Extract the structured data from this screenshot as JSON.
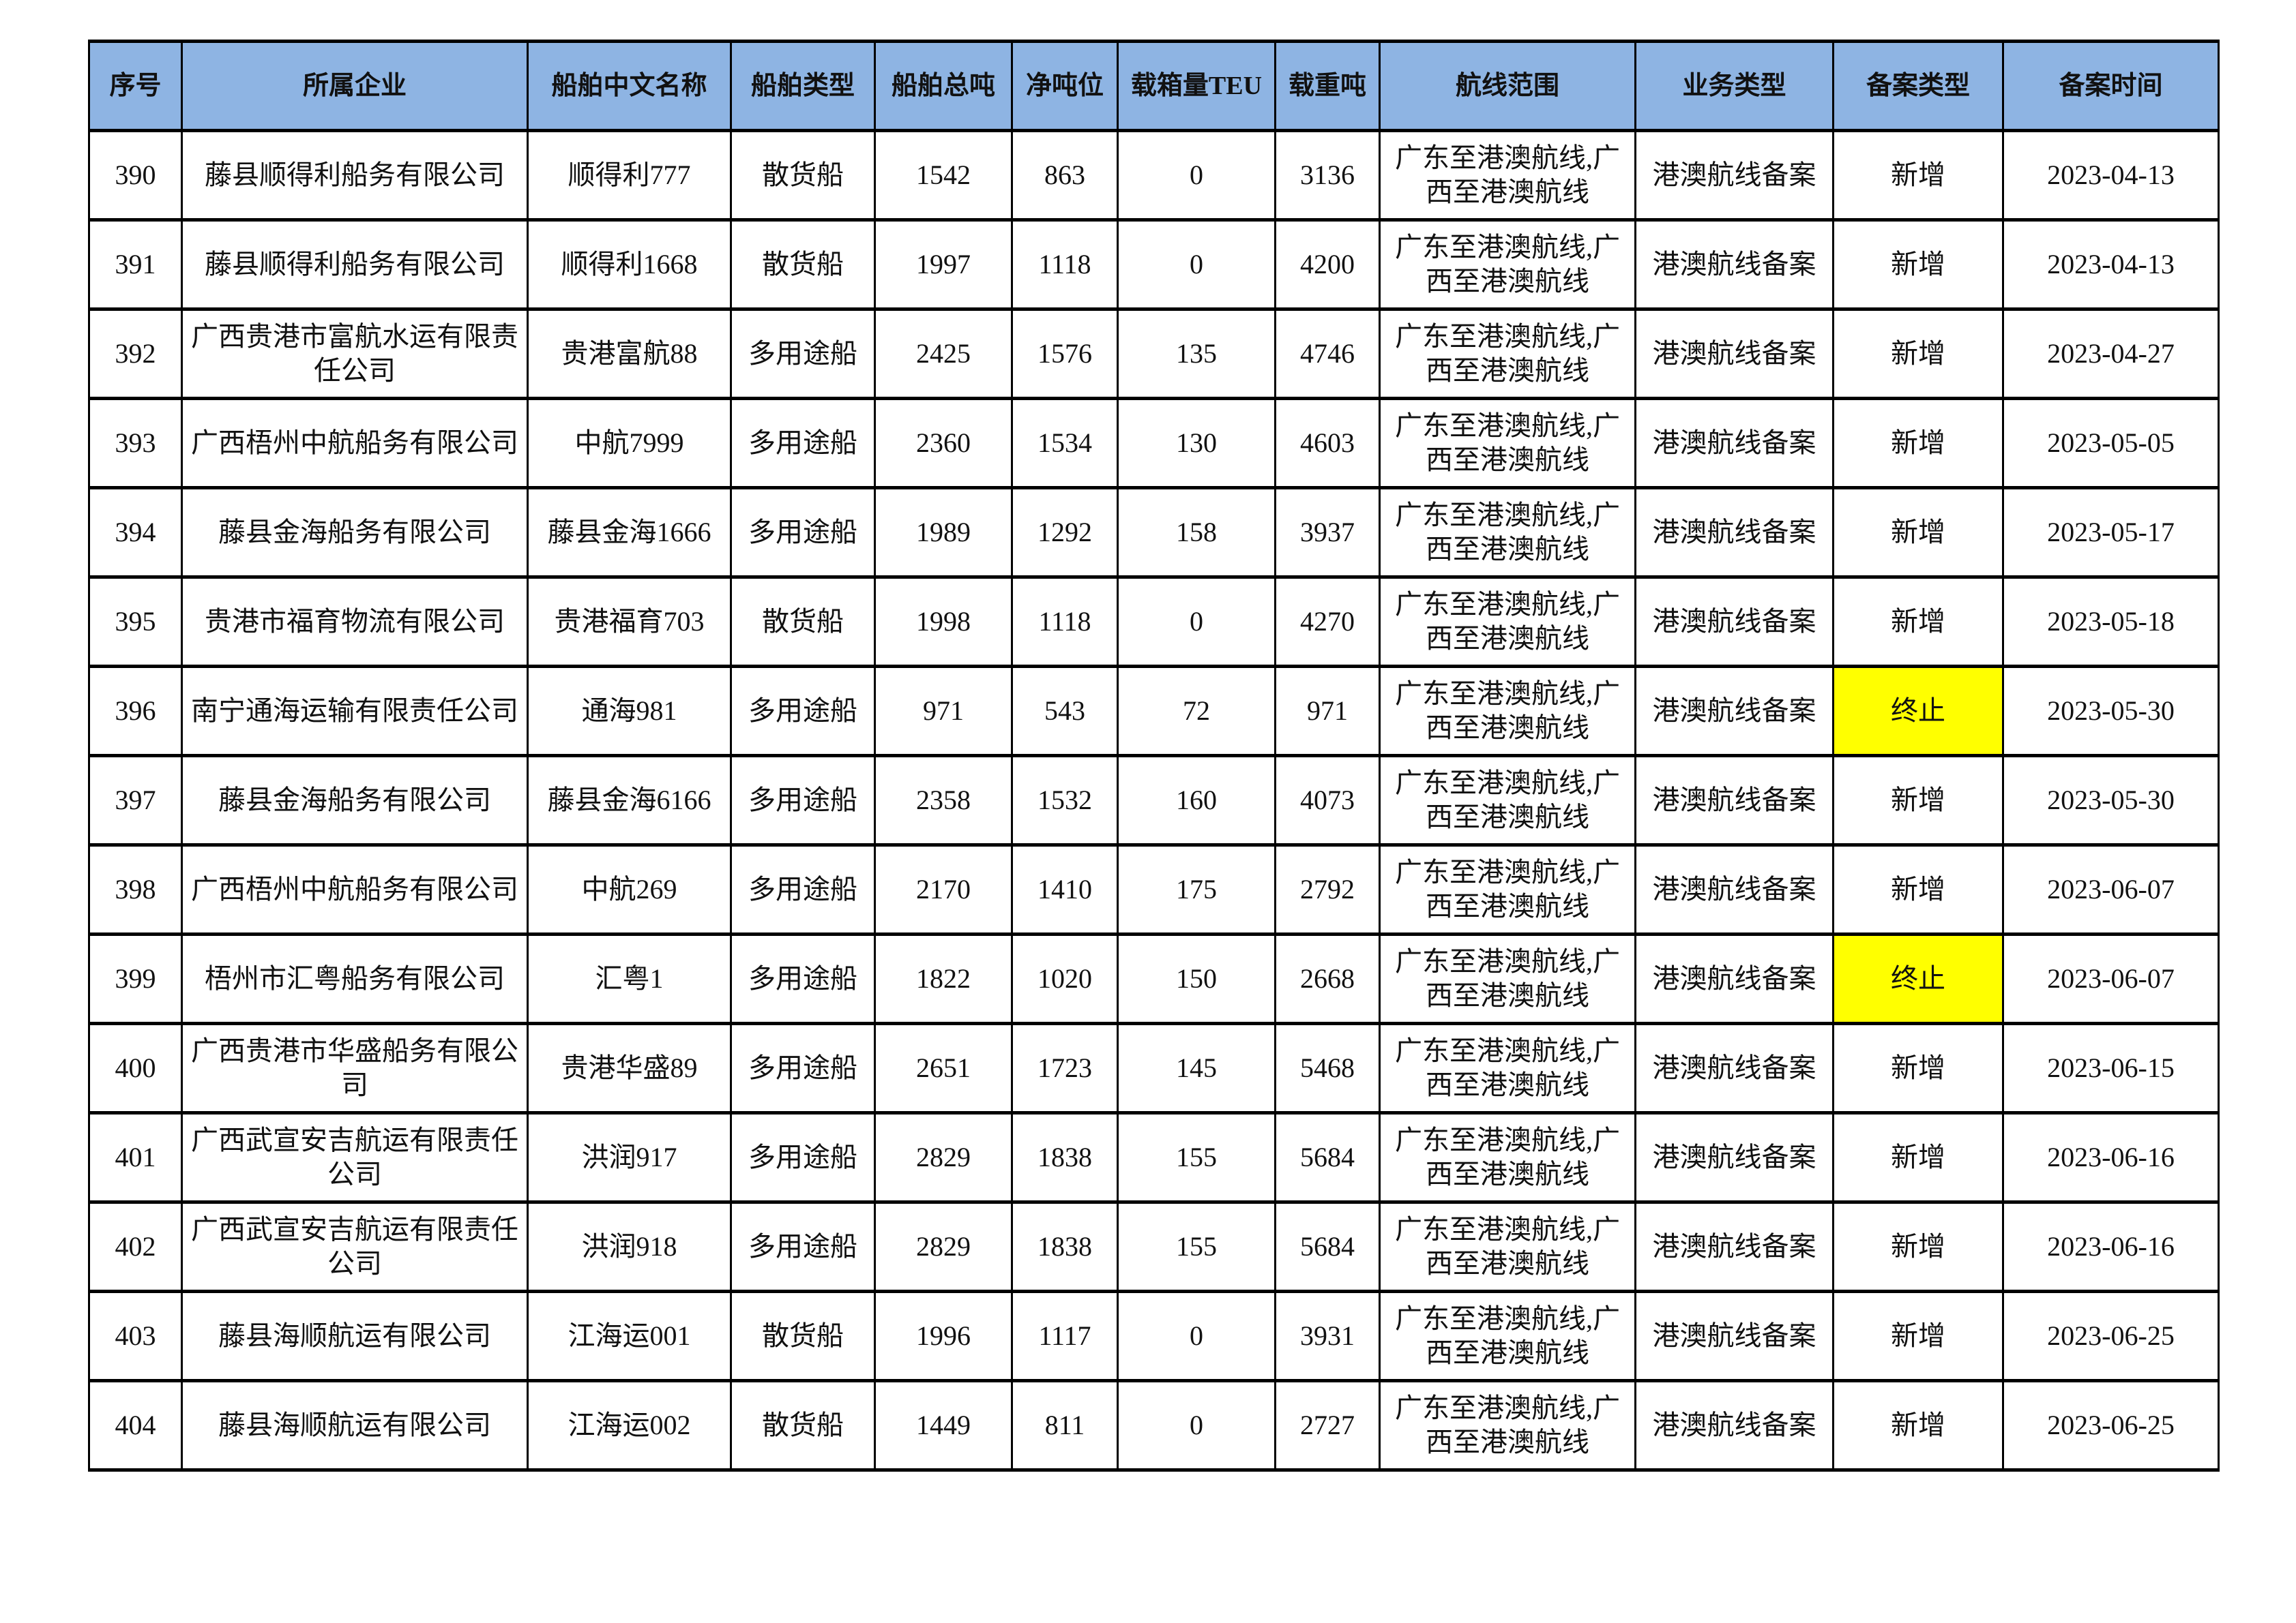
{
  "colors": {
    "header_bg": "#8EB4E3",
    "highlight": "#FFFF00"
  },
  "headers": [
    "序号",
    "所属企业",
    "船舶中文名称",
    "船舶类型",
    "船舶总吨",
    "净吨位",
    "载箱量TEU",
    "载重吨",
    "航线范围",
    "业务类型",
    "备案类型",
    "备案时间"
  ],
  "rows": [
    [
      "390",
      "藤县顺得利船务有限公司",
      "顺得利777",
      "散货船",
      "1542",
      "863",
      "0",
      "3136",
      "广东至港澳航线,广西至港澳航线",
      "港澳航线备案",
      "新增",
      "2023-04-13"
    ],
    [
      "391",
      "藤县顺得利船务有限公司",
      "顺得利1668",
      "散货船",
      "1997",
      "1118",
      "0",
      "4200",
      "广东至港澳航线,广西至港澳航线",
      "港澳航线备案",
      "新增",
      "2023-04-13"
    ],
    [
      "392",
      "广西贵港市富航水运有限责任公司",
      "贵港富航88",
      "多用途船",
      "2425",
      "1576",
      "135",
      "4746",
      "广东至港澳航线,广西至港澳航线",
      "港澳航线备案",
      "新增",
      "2023-04-27"
    ],
    [
      "393",
      "广西梧州中航船务有限公司",
      "中航7999",
      "多用途船",
      "2360",
      "1534",
      "130",
      "4603",
      "广东至港澳航线,广西至港澳航线",
      "港澳航线备案",
      "新增",
      "2023-05-05"
    ],
    [
      "394",
      "藤县金海船务有限公司",
      "藤县金海1666",
      "多用途船",
      "1989",
      "1292",
      "158",
      "3937",
      "广东至港澳航线,广西至港澳航线",
      "港澳航线备案",
      "新增",
      "2023-05-17"
    ],
    [
      "395",
      "贵港市福育物流有限公司",
      "贵港福育703",
      "散货船",
      "1998",
      "1118",
      "0",
      "4270",
      "广东至港澳航线,广西至港澳航线",
      "港澳航线备案",
      "新增",
      "2023-05-18"
    ],
    [
      "396",
      "南宁通海运输有限责任公司",
      "通海981",
      "多用途船",
      "971",
      "543",
      "72",
      "971",
      "广东至港澳航线,广西至港澳航线",
      "港澳航线备案",
      "终止",
      "2023-05-30"
    ],
    [
      "397",
      "藤县金海船务有限公司",
      "藤县金海6166",
      "多用途船",
      "2358",
      "1532",
      "160",
      "4073",
      "广东至港澳航线,广西至港澳航线",
      "港澳航线备案",
      "新增",
      "2023-05-30"
    ],
    [
      "398",
      "广西梧州中航船务有限公司",
      "中航269",
      "多用途船",
      "2170",
      "1410",
      "175",
      "2792",
      "广东至港澳航线,广西至港澳航线",
      "港澳航线备案",
      "新增",
      "2023-06-07"
    ],
    [
      "399",
      "梧州市汇粤船务有限公司",
      "汇粤1",
      "多用途船",
      "1822",
      "1020",
      "150",
      "2668",
      "广东至港澳航线,广西至港澳航线",
      "港澳航线备案",
      "终止",
      "2023-06-07"
    ],
    [
      "400",
      "广西贵港市华盛船务有限公司",
      "贵港华盛89",
      "多用途船",
      "2651",
      "1723",
      "145",
      "5468",
      "广东至港澳航线,广西至港澳航线",
      "港澳航线备案",
      "新增",
      "2023-06-15"
    ],
    [
      "401",
      "广西武宣安吉航运有限责任公司",
      "洪润917",
      "多用途船",
      "2829",
      "1838",
      "155",
      "5684",
      "广东至港澳航线,广西至港澳航线",
      "港澳航线备案",
      "新增",
      "2023-06-16"
    ],
    [
      "402",
      "广西武宣安吉航运有限责任公司",
      "洪润918",
      "多用途船",
      "2829",
      "1838",
      "155",
      "5684",
      "广东至港澳航线,广西至港澳航线",
      "港澳航线备案",
      "新增",
      "2023-06-16"
    ],
    [
      "403",
      "藤县海顺航运有限公司",
      "江海运001",
      "散货船",
      "1996",
      "1117",
      "0",
      "3931",
      "广东至港澳航线,广西至港澳航线",
      "港澳航线备案",
      "新增",
      "2023-06-25"
    ],
    [
      "404",
      "藤县海顺航运有限公司",
      "江海运002",
      "散货船",
      "1449",
      "811",
      "0",
      "2727",
      "广东至港澳航线,广西至港澳航线",
      "港澳航线备案",
      "新增",
      "2023-06-25"
    ]
  ]
}
